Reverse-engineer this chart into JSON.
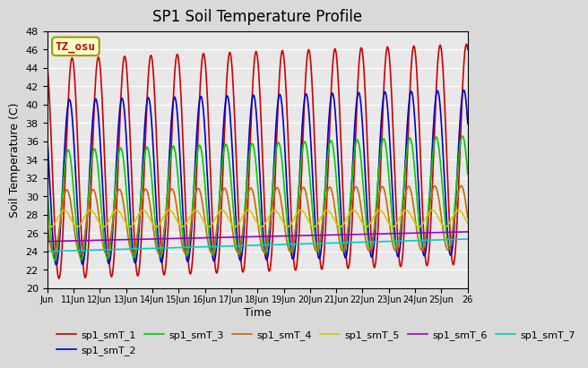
{
  "title": "SP1 Soil Temperature Profile",
  "xlabel": "Time",
  "ylabel": "Soil Temperature (C)",
  "ylim": [
    20,
    48
  ],
  "yticks": [
    20,
    22,
    24,
    26,
    28,
    30,
    32,
    34,
    36,
    38,
    40,
    42,
    44,
    46,
    48
  ],
  "fig_bg_color": "#d9d9d9",
  "plot_bg_color": "#e8e8e8",
  "annotation_text": "TZ_osu",
  "annotation_color": "#cc0000",
  "annotation_bg": "#ffffcc",
  "annotation_border": "#999900",
  "series_colors": {
    "sp1_smT_1": "#cc0000",
    "sp1_smT_2": "#0000cc",
    "sp1_smT_3": "#00cc00",
    "sp1_smT_4": "#cc6600",
    "sp1_smT_5": "#cccc00",
    "sp1_smT_6": "#9900cc",
    "sp1_smT_7": "#00cccc"
  },
  "legend_labels": [
    "sp1_smT_1",
    "sp1_smT_2",
    "sp1_smT_3",
    "sp1_smT_4",
    "sp1_smT_5",
    "sp1_smT_6",
    "sp1_smT_7"
  ],
  "n_points": 720,
  "xtick_positions": [
    0,
    1,
    2,
    3,
    4,
    5,
    6,
    7,
    8,
    9,
    10,
    11,
    12,
    13,
    14,
    15,
    16
  ],
  "xtick_labels": [
    "Jun",
    "11Jun",
    "12Jun",
    "13Jun",
    "14Jun",
    "15Jun",
    "16Jun",
    "17Jun",
    "18Jun",
    "19Jun",
    "20Jun",
    "21Jun",
    "22Jun",
    "23Jun",
    "24Jun",
    "25Jun",
    "26"
  ]
}
